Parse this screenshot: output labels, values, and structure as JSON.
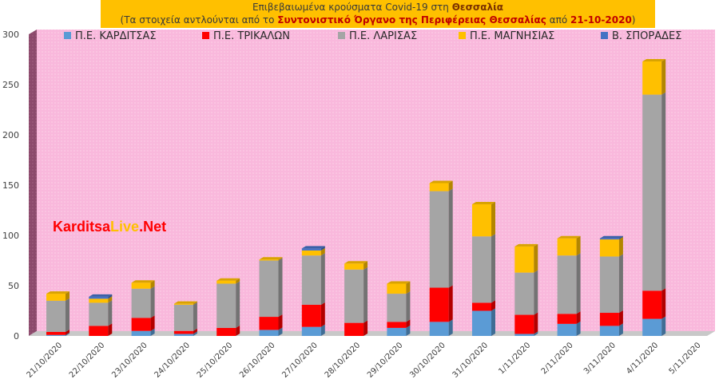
{
  "header": {
    "line1_pre": "Επιβεβαιωμένα κρούσματα Covid-19 στη ",
    "line1_region": "Θεσσαλία",
    "line2_pre": "(Τα στοιχεία αντλούνται από το ",
    "line2_source": "Συντονιστικό Όργανο της Περιφέρειας Θεσσαλίας",
    "line2_mid": " από ",
    "line2_date": "21-10-2020",
    "line2_post": ")"
  },
  "watermark": {
    "part1": "Karditsa",
    "part2": "Live",
    "part3": ".Net"
  },
  "chart_data": {
    "type": "bar",
    "stacked": true,
    "categories": [
      "21/10/2020",
      "22/10/2020",
      "23/10/2020",
      "24/10/2020",
      "25/10/2020",
      "26/10/2020",
      "27/10/2020",
      "28/10/2020",
      "29/10/2020",
      "30/10/2020",
      "31/10/2020",
      "1/11/2020",
      "2/11/2020",
      "3/11/2020",
      "4/11/2020",
      "5/11/2020"
    ],
    "series": [
      {
        "name": "Π.Ε. ΚΑΡΔΙΤΣΑΣ",
        "color": "#5b9bd5",
        "values": [
          1,
          0,
          5,
          2,
          0,
          6,
          9,
          0,
          8,
          14,
          25,
          2,
          12,
          10,
          17,
          0
        ]
      },
      {
        "name": "Π.Ε. ΤΡΙΚΑΛΩΝ",
        "color": "#ff0000",
        "values": [
          3,
          10,
          13,
          3,
          8,
          13,
          22,
          13,
          6,
          34,
          8,
          19,
          10,
          13,
          28,
          0
        ]
      },
      {
        "name": "Π.Ε. ΛΑΡΙΣΑΣ",
        "color": "#a5a5a5",
        "values": [
          31,
          23,
          29,
          26,
          44,
          56,
          49,
          53,
          28,
          96,
          66,
          42,
          58,
          56,
          195,
          0
        ]
      },
      {
        "name": "Π.Ε. ΜΑΓΝΗΣΙΑΣ",
        "color": "#ffc000",
        "values": [
          7,
          4,
          6,
          1,
          3,
          1,
          5,
          6,
          10,
          8,
          32,
          26,
          17,
          17,
          33,
          0
        ]
      },
      {
        "name": "Β. ΣΠΟΡΑΔΕΣ",
        "color": "#4472c4",
        "values": [
          0,
          2,
          0,
          0,
          0,
          0,
          2,
          0,
          0,
          0,
          0,
          0,
          0,
          1,
          0,
          0
        ]
      }
    ],
    "ylim": [
      0,
      300
    ],
    "yticks": [
      0,
      50,
      100,
      150,
      200,
      250,
      300
    ],
    "grid": false,
    "legend_position": "top",
    "plot_background": "#f9b8dc"
  }
}
